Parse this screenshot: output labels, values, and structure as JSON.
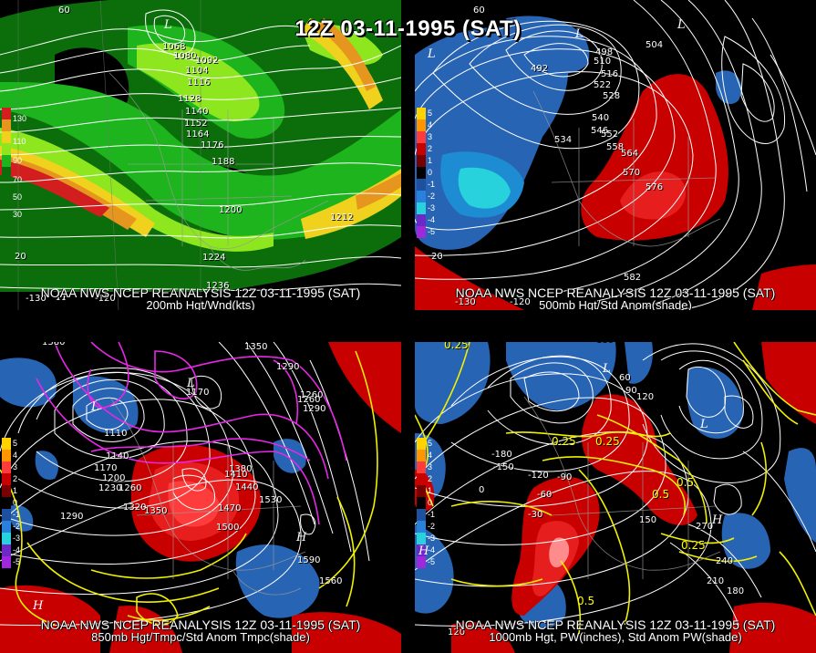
{
  "title": "12Z 03-11-1995 (SAT)",
  "panels": {
    "p200": {
      "line1": "NOAA NWS NCEP REANALYSIS 12Z 03-11-1995 (SAT)",
      "line2": "200mb Hgt/Wnd(kts)",
      "legend": [
        "130",
        "110",
        "90",
        "70",
        "50",
        "30"
      ],
      "labels": [
        "1068",
        "1080",
        "1092",
        "1104",
        "1116",
        "1128",
        "1140",
        "1152",
        "1164",
        "1176",
        "1188",
        "1200",
        "1212",
        "1224",
        "1236"
      ],
      "lon": [
        "-130",
        "-120"
      ],
      "lat": [
        "60",
        "20"
      ]
    },
    "p500": {
      "line1": "NOAA NWS NCEP REANALYSIS 12Z 03-11-1995 (SAT)",
      "line2": "500mb Hgt/Std Anom(shade)",
      "legend": [
        "5",
        "4",
        "3",
        "2",
        "1",
        "0",
        "-1",
        "-2",
        "-3",
        "-4",
        "-5"
      ],
      "labels": [
        "492",
        "498",
        "504",
        "510",
        "516",
        "522",
        "528",
        "534",
        "540",
        "546",
        "552",
        "558",
        "564",
        "570",
        "576",
        "582"
      ],
      "lon": [
        "-130",
        "-120"
      ],
      "lat": [
        "60",
        "20"
      ]
    },
    "p850": {
      "line1": "NOAA NWS NCEP REANALYSIS 12Z 03-11-1995 (SAT)",
      "line2": "850mb Hgt/Tmpc/Std Anom Tmpc(shade)",
      "legend": [
        "5",
        "4",
        "3",
        "2",
        "1",
        "0",
        "-1",
        "-2",
        "-3",
        "-4",
        "-5"
      ],
      "labels": [
        "1380",
        "1350",
        "1350",
        "1290",
        "1260",
        "1170",
        "1110",
        "1140",
        "1170",
        "1200",
        "1230",
        "1260",
        "1290",
        "1320",
        "1350",
        "1380",
        "1410",
        "1440",
        "1470",
        "1500",
        "1530",
        "1290",
        "1260",
        "1560",
        "1590"
      ]
    },
    "p1000": {
      "line1": "NOAA NWS NCEP REANALYSIS 12Z 03-11-1995 (SAT)",
      "line2": "1000mb Hgt, PW(inches), Std Anom PW(shade)",
      "legend": [
        "5",
        "4",
        "3",
        "2",
        "1",
        "0",
        "-1",
        "-2",
        "-3",
        "-4",
        "-5"
      ],
      "white_labels": [
        "180",
        "60",
        "90",
        "120",
        "-180",
        "-150",
        "-120",
        "-90",
        "-60",
        "-30",
        "0",
        "150",
        "270",
        "240",
        "210",
        "180",
        "120"
      ],
      "yellow_labels": [
        "0.25",
        "0.25",
        "0.25",
        "0.5",
        "0.5",
        "0.25",
        "0.5"
      ]
    }
  },
  "colors": {
    "wind_green_dark": "#0b6e0b",
    "wind_green": "#1eb41e",
    "wind_lime": "#8ee61e",
    "wind_yellow": "#f0d21e",
    "wind_orange": "#e6961e",
    "wind_red": "#d21e1e",
    "anom_red": "#c80000",
    "anom_blue": "#2864b4",
    "anom_cyan": "#28d2dc",
    "contour_white": "#ffffff",
    "temp_magenta": "#e628e6",
    "pw_yellow": "#f0f000"
  }
}
